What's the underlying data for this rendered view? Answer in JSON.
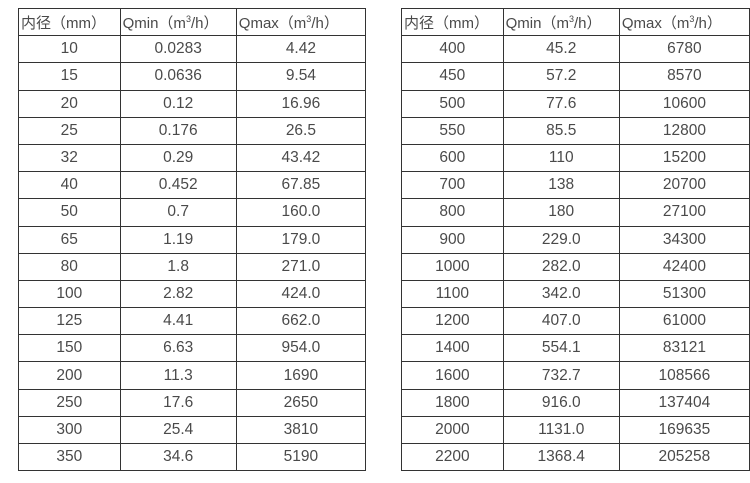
{
  "page": {
    "background": "#ffffff",
    "text_color": "#4a4a4a",
    "border_color": "#333333"
  },
  "tables": [
    {
      "name": "flow-spec-table-small-diameters",
      "headers": [
        "内径（mm）",
        "Qmin（m³/h）",
        "Qmax（m³/h）"
      ],
      "rows": [
        [
          "10",
          "0.0283",
          "4.42"
        ],
        [
          "15",
          "0.0636",
          "9.54"
        ],
        [
          "20",
          "0.12",
          "16.96"
        ],
        [
          "25",
          "0.176",
          "26.5"
        ],
        [
          "32",
          "0.29",
          "43.42"
        ],
        [
          "40",
          "0.452",
          "67.85"
        ],
        [
          "50",
          "0.7",
          "160.0"
        ],
        [
          "65",
          "1.19",
          "179.0"
        ],
        [
          "80",
          "1.8",
          "271.0"
        ],
        [
          "100",
          "2.82",
          "424.0"
        ],
        [
          "125",
          "4.41",
          "662.0"
        ],
        [
          "150",
          "6.63",
          "954.0"
        ],
        [
          "200",
          "11.3",
          "1690"
        ],
        [
          "250",
          "17.6",
          "2650"
        ],
        [
          "300",
          "25.4",
          "3810"
        ],
        [
          "350",
          "34.6",
          "5190"
        ]
      ]
    },
    {
      "name": "flow-spec-table-large-diameters",
      "headers": [
        "内径（mm）",
        "Qmin（m³/h）",
        "Qmax（m³/h）"
      ],
      "rows": [
        [
          "400",
          "45.2",
          "6780"
        ],
        [
          "450",
          "57.2",
          "8570"
        ],
        [
          "500",
          "77.6",
          "10600"
        ],
        [
          "550",
          "85.5",
          "12800"
        ],
        [
          "600",
          "110",
          "15200"
        ],
        [
          "700",
          "138",
          "20700"
        ],
        [
          "800",
          "180",
          "27100"
        ],
        [
          "900",
          "229.0",
          "34300"
        ],
        [
          "1000",
          "282.0",
          "42400"
        ],
        [
          "1100",
          "342.0",
          "51300"
        ],
        [
          "1200",
          "407.0",
          "61000"
        ],
        [
          "1400",
          "554.1",
          "83121"
        ],
        [
          "1600",
          "732.7",
          "108566"
        ],
        [
          "1800",
          "916.0",
          "137404"
        ],
        [
          "2000",
          "1131.0",
          "169635"
        ],
        [
          "2200",
          "1368.4",
          "205258"
        ]
      ]
    }
  ]
}
